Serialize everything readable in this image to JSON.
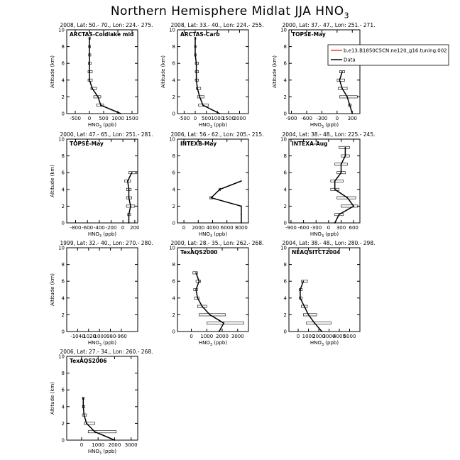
{
  "title": "Northern Hemisphere Midlat JJA HNO",
  "title_sub": "3",
  "colors": {
    "model": "#ff0000",
    "data": "#000000",
    "frame": "#000000"
  },
  "legend": {
    "model_label": "b.e13.B1850C5CN.ne120_g16.tuning.002",
    "data_label": "Data"
  },
  "chart_data": [
    {
      "type": "line",
      "header": "2008, Lat: 50.- 70., Lon: 224.- 275.",
      "label": "ARCTAS-Coldlake mid",
      "ylabel": "Altitude (km)",
      "xlabel": "HNO",
      "xlabel_sub": "3",
      "xlabel_unit": " (ppb)",
      "xlim": [
        -800,
        1700
      ],
      "ylim": [
        0,
        10
      ],
      "xticks": [
        -500,
        0,
        500,
        1000,
        1500
      ],
      "yticks": [
        0,
        2,
        4,
        6,
        8,
        10
      ],
      "series": [
        {
          "points": [
            [
              1100,
              0
            ],
            [
              400,
              1
            ],
            [
              300,
              2
            ],
            [
              100,
              3
            ],
            [
              0,
              4
            ],
            [
              0,
              5
            ],
            [
              0,
              6
            ],
            [
              0,
              7
            ],
            [
              0,
              8
            ],
            [
              0,
              9
            ]
          ],
          "error": [
            [
              0,
              0
            ],
            [
              250,
              500
            ],
            [
              150,
              400
            ],
            [
              50,
              250
            ],
            [
              -50,
              100
            ],
            [
              -50,
              100
            ],
            [
              -40,
              60
            ],
            [
              -30,
              50
            ],
            [
              -30,
              40
            ],
            [
              -20,
              30
            ]
          ]
        }
      ]
    },
    {
      "type": "line",
      "header": "2008, Lat: 33.- 40., Lon: 224.- 255.",
      "label": "ARCTAS-Carb",
      "ylabel": "Altitude (km)",
      "xlabel": "HNO",
      "xlabel_sub": "3",
      "xlabel_unit": " (ppb)",
      "xlim": [
        -800,
        2400
      ],
      "ylim": [
        0,
        10
      ],
      "xticks": [
        -500,
        0,
        500,
        1000,
        1500,
        2000
      ],
      "yticks": [
        0,
        2,
        4,
        6,
        8,
        10
      ],
      "series": [
        {
          "points": [
            [
              1100,
              0
            ],
            [
              350,
              1
            ],
            [
              200,
              2
            ],
            [
              100,
              3
            ],
            [
              50,
              4
            ],
            [
              50,
              5
            ],
            [
              50,
              6
            ],
            [
              0,
              7
            ],
            [
              0,
              8
            ],
            [
              0,
              9
            ]
          ],
          "error": [
            [
              0,
              0
            ],
            [
              150,
              600
            ],
            [
              100,
              400
            ],
            [
              50,
              250
            ],
            [
              0,
              150
            ],
            [
              0,
              150
            ],
            [
              0,
              150
            ],
            [
              -30,
              50
            ],
            [
              -30,
              40
            ],
            [
              -20,
              30
            ]
          ]
        }
      ]
    },
    {
      "type": "line",
      "header": "2000, Lat: 37.- 47., Lon: 251.- 271.",
      "label": "TOPSE-May",
      "ylabel": "Altitude (km)",
      "xlabel": "HNO",
      "xlabel_sub": "3",
      "xlabel_unit": " (ppb)",
      "xlim": [
        -950,
        450
      ],
      "ylim": [
        0,
        10
      ],
      "xticks": [
        -900,
        -600,
        -300,
        0,
        300
      ],
      "yticks": [
        0,
        2,
        4,
        6,
        8,
        10
      ],
      "series": [
        {
          "points": [
            [
              300,
              0
            ],
            [
              250,
              1
            ],
            [
              200,
              2
            ],
            [
              100,
              3
            ],
            [
              50,
              4
            ],
            [
              100,
              5
            ]
          ],
          "error": [
            [
              300,
              300
            ],
            [
              220,
              280
            ],
            [
              50,
              400
            ],
            [
              20,
              200
            ],
            [
              0,
              150
            ],
            [
              50,
              150
            ]
          ]
        }
      ]
    },
    {
      "type": "line",
      "header": "2000, Lat: 47.- 65., Lon: 251.- 281.",
      "label": "TOPSE-May",
      "ylabel": "Altitude (km)",
      "xlabel": "HNO",
      "xlabel_sub": "3",
      "xlabel_unit": " (ppb)",
      "xlim": [
        -950,
        250
      ],
      "ylim": [
        0,
        10
      ],
      "xticks": [
        -800,
        -600,
        -400,
        -200,
        0,
        200
      ],
      "yticks": [
        0,
        2,
        4,
        6,
        8,
        10
      ],
      "series": [
        {
          "points": [
            [
              100,
              0
            ],
            [
              100,
              1
            ],
            [
              130,
              2
            ],
            [
              100,
              3
            ],
            [
              100,
              4
            ],
            [
              80,
              5
            ],
            [
              150,
              6
            ]
          ],
          "error": [
            [
              100,
              100
            ],
            [
              80,
              130
            ],
            [
              60,
              200
            ],
            [
              60,
              150
            ],
            [
              60,
              140
            ],
            [
              30,
              130
            ],
            [
              100,
              250
            ]
          ]
        }
      ]
    },
    {
      "type": "line",
      "header": "2006, Lat: 56.- 62., Lon: 205.- 215.",
      "label": "INTEXB-May",
      "ylabel": "",
      "xlabel": "HNO",
      "xlabel_sub": "3",
      "xlabel_unit": " (ppb)",
      "xlim": [
        -900,
        9000
      ],
      "ylim": [
        0,
        10
      ],
      "xticks": [
        0,
        2000,
        4000,
        6000,
        8000
      ],
      "yticks": [
        0,
        2,
        4,
        6,
        8,
        10
      ],
      "series": [
        {
          "points": [
            [
              8000,
              0
            ],
            [
              8000,
              1
            ],
            [
              8000,
              2
            ],
            [
              3800,
              3
            ],
            [
              5000,
              4
            ],
            [
              8000,
              5
            ]
          ],
          "error": [
            [
              8000,
              8000
            ],
            [
              8000,
              8000
            ],
            [
              8000,
              8000
            ],
            [
              3600,
              4000
            ],
            [
              4900,
              5100
            ],
            [
              8000,
              8000
            ]
          ]
        }
      ]
    },
    {
      "type": "line",
      "header": "2004, Lat: 38.- 48., Lon: 225.- 245.",
      "label": "INTEXA-Aug",
      "ylabel": "",
      "xlabel": "HNO",
      "xlabel_sub": "3",
      "xlabel_unit": " (ppb)",
      "xlim": [
        -950,
        750
      ],
      "ylim": [
        0,
        10
      ],
      "xticks": [
        -900,
        -600,
        -300,
        0,
        300,
        600
      ],
      "yticks": [
        0,
        2,
        4,
        6,
        8,
        10
      ],
      "series": [
        {
          "points": [
            [
              150,
              0
            ],
            [
              250,
              1
            ],
            [
              600,
              2
            ],
            [
              450,
              3
            ],
            [
              150,
              4
            ],
            [
              150,
              5
            ],
            [
              300,
              6
            ],
            [
              300,
              7
            ],
            [
              400,
              8
            ],
            [
              400,
              9
            ]
          ],
          "error": [
            [
              150,
              150
            ],
            [
              150,
              350
            ],
            [
              300,
              700
            ],
            [
              200,
              650
            ],
            [
              50,
              250
            ],
            [
              50,
              350
            ],
            [
              200,
              400
            ],
            [
              150,
              450
            ],
            [
              300,
              500
            ],
            [
              250,
              500
            ]
          ]
        }
      ]
    },
    {
      "type": "line",
      "header": "1999, Lat: 32.- 40., Lon: 270.- 280.",
      "label": "",
      "ylabel": "Altitude (km)",
      "xlabel": "HNO",
      "xlabel_sub": "3",
      "xlabel_unit": " (ppb)",
      "xlim": [
        -1060,
        -930
      ],
      "ylim": [
        0,
        10
      ],
      "xticks": [
        -1040,
        -1020,
        -1000,
        -980,
        -960
      ],
      "yticks": [
        0,
        2,
        4,
        6,
        8,
        10
      ],
      "series": []
    },
    {
      "type": "line",
      "header": "2000, Lat: 28.- 35., Lon: 262.- 268.",
      "label": "TexAQS2000",
      "ylabel": "",
      "xlabel": "HNO",
      "xlabel_sub": "3",
      "xlabel_unit": " (ppb)",
      "xlim": [
        -900,
        3700
      ],
      "ylim": [
        0,
        10
      ],
      "xticks": [
        0,
        1000,
        2000,
        3000
      ],
      "yticks": [
        0,
        2,
        4,
        6,
        8,
        10
      ],
      "series": [
        {
          "points": [
            [
              1800,
              0
            ],
            [
              2100,
              1
            ],
            [
              1200,
              2
            ],
            [
              700,
              3
            ],
            [
              400,
              4
            ],
            [
              300,
              5
            ],
            [
              500,
              6
            ],
            [
              300,
              7
            ]
          ],
          "error": [
            [
              1800,
              1800
            ],
            [
              1000,
              3400
            ],
            [
              500,
              2200
            ],
            [
              400,
              1000
            ],
            [
              200,
              500
            ],
            [
              150,
              400
            ],
            [
              300,
              600
            ],
            [
              100,
              400
            ]
          ]
        }
      ]
    },
    {
      "type": "line",
      "header": "2004, Lat: 38.- 48., Lon: 280.- 298.",
      "label": "NEAQSITCT2004",
      "ylabel": "",
      "xlabel": "HNO",
      "xlabel_sub": "3",
      "xlabel_unit": " (ppb)",
      "xlim": [
        -900,
        6000
      ],
      "ylim": [
        0,
        10
      ],
      "xticks": [
        0,
        1000,
        2000,
        3000,
        4000,
        5000
      ],
      "yticks": [
        0,
        2,
        4,
        6,
        8,
        10
      ],
      "series": [
        {
          "points": [
            [
              2300,
              0
            ],
            [
              1600,
              1
            ],
            [
              1000,
              2
            ],
            [
              600,
              3
            ],
            [
              200,
              4
            ],
            [
              200,
              5
            ],
            [
              500,
              6
            ]
          ],
          "error": [
            [
              2300,
              2300
            ],
            [
              800,
              3200
            ],
            [
              500,
              1800
            ],
            [
              300,
              900
            ],
            [
              100,
              400
            ],
            [
              100,
              400
            ],
            [
              300,
              900
            ]
          ]
        }
      ]
    },
    {
      "type": "line",
      "header": "2006, Lat: 27.- 34., Lon: 260.- 268.",
      "label": "TexAQS2006",
      "ylabel": "Altitude (km)",
      "xlabel": "HNO",
      "xlabel_sub": "3",
      "xlabel_unit": " (ppb)",
      "xlim": [
        -900,
        3400
      ],
      "ylim": [
        0,
        10
      ],
      "xticks": [
        0,
        1000,
        2000,
        3000
      ],
      "yticks": [
        0,
        2,
        4,
        6,
        8,
        10
      ],
      "series": [
        {
          "points": [
            [
              2000,
              0
            ],
            [
              800,
              1
            ],
            [
              300,
              2
            ],
            [
              150,
              3
            ],
            [
              100,
              4
            ],
            [
              100,
              5
            ]
          ],
          "error": [
            [
              2000,
              2000
            ],
            [
              400,
              2100
            ],
            [
              150,
              800
            ],
            [
              50,
              300
            ],
            [
              50,
              200
            ],
            [
              50,
              150
            ]
          ]
        }
      ]
    }
  ]
}
